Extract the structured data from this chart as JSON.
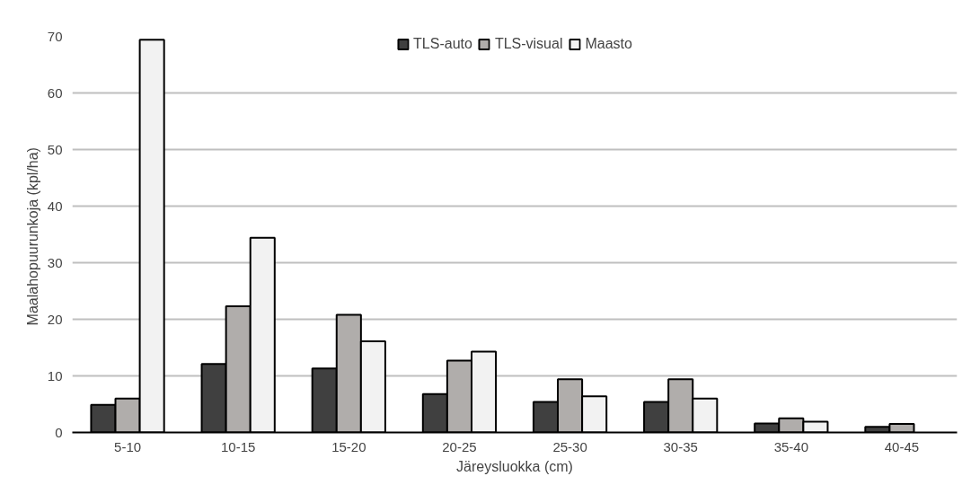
{
  "chart_data": {
    "type": "bar",
    "xlabel": "Järeysluokka (cm)",
    "ylabel": "Maalahopuurunkoja  (kpl/ha)",
    "categories": [
      "5-10",
      "10-15",
      "15-20",
      "20-25",
      "25-30",
      "30-35",
      "35-40",
      "40-45"
    ],
    "series": [
      {
        "name": "TLS-auto",
        "color": "#404040",
        "values": [
          4.9,
          12.1,
          11.3,
          6.8,
          5.4,
          5.4,
          1.6,
          1.0
        ]
      },
      {
        "name": "TLS-visual",
        "color": "#b0adab",
        "values": [
          6.0,
          22.3,
          20.8,
          12.7,
          9.4,
          9.4,
          2.5,
          1.5
        ]
      },
      {
        "name": "Maasto",
        "color": "#f2f2f2",
        "values": [
          69.4,
          34.4,
          16.1,
          14.3,
          6.4,
          6.0,
          1.9,
          null
        ]
      }
    ],
    "ylim": [
      0,
      70
    ],
    "yticks": [
      0,
      10,
      20,
      30,
      40,
      50,
      60,
      70
    ],
    "grid": "y",
    "legend": "top"
  }
}
